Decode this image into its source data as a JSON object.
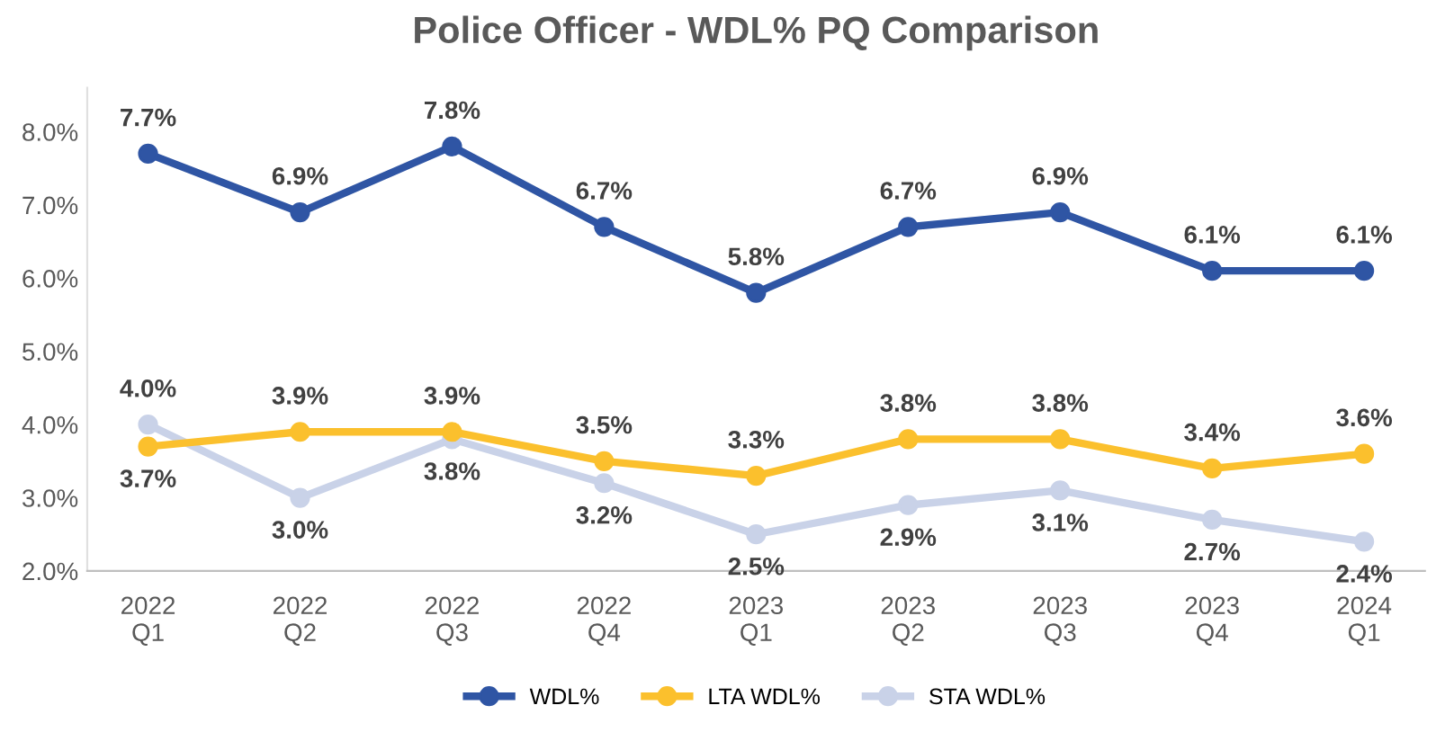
{
  "chart_data": {
    "type": "line",
    "title": "Police Officer - WDL% PQ Comparison",
    "categories": [
      "2022\nQ1",
      "2022\nQ2",
      "2022\nQ3",
      "2022\nQ4",
      "2023\nQ1",
      "2023\nQ2",
      "2023\nQ3",
      "2023\nQ4",
      "2024\nQ1"
    ],
    "series": [
      {
        "name": "WDL%",
        "color": "#2f55a4",
        "values": [
          7.7,
          6.9,
          7.8,
          6.7,
          5.8,
          6.7,
          6.9,
          6.1,
          6.1
        ],
        "value_labels": [
          "7.7%",
          "6.9%",
          "7.8%",
          "6.7%",
          "5.8%",
          "6.7%",
          "6.9%",
          "6.1%",
          "6.1%"
        ]
      },
      {
        "name": "LTA WDL%",
        "color": "#fbc02d",
        "values": [
          3.7,
          3.9,
          3.9,
          3.5,
          3.3,
          3.8,
          3.8,
          3.4,
          3.6
        ],
        "value_labels": [
          "3.7%",
          "3.9%",
          "3.9%",
          "3.5%",
          "3.3%",
          "3.8%",
          "3.8%",
          "3.4%",
          "3.6%"
        ]
      },
      {
        "name": "STA WDL%",
        "color": "#c9d2e8",
        "values": [
          4.0,
          3.0,
          3.8,
          3.2,
          2.5,
          2.9,
          3.1,
          2.7,
          2.4
        ],
        "value_labels": [
          "4.0%",
          "3.0%",
          "3.8%",
          "3.2%",
          "2.5%",
          "2.9%",
          "3.1%",
          "2.7%",
          "2.4%"
        ]
      }
    ],
    "ylim": [
      2,
      8.6
    ],
    "yticks": [
      {
        "value": 2,
        "label": "2.0%"
      },
      {
        "value": 3,
        "label": "3.0%"
      },
      {
        "value": 4,
        "label": "4.0%"
      },
      {
        "value": 5,
        "label": "5.0%"
      },
      {
        "value": 6,
        "label": "6.0%"
      },
      {
        "value": 7,
        "label": "7.0%"
      },
      {
        "value": 8,
        "label": "8.0%"
      }
    ],
    "grid": false,
    "legend": "bottom",
    "marker": "circle",
    "line_style": "solid"
  }
}
